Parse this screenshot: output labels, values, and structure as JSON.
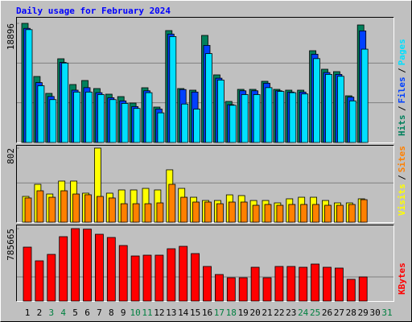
{
  "title": "Daily usage for February 2024",
  "chart_data": [
    {
      "type": "bar",
      "ylim": [
        0,
        18896
      ],
      "yticks": [
        18896
      ],
      "series": [
        {
          "name": "Hits",
          "color": "#00805c",
          "values": [
            18896,
            10470,
            7788,
            13279,
            9193,
            9831,
            8555,
            7661,
            7278,
            6256,
            8682,
            5618,
            17748,
            8555,
            8299,
            16981,
            10725,
            6512,
            8427,
            8427,
            9704,
            8427,
            8299,
            8299,
            14556,
            11619,
            11236,
            7405,
            18641,
            null,
            null
          ]
        },
        {
          "name": "Files",
          "color": "#0040ff",
          "values": [
            18100,
            9500,
            7300,
            12700,
            8300,
            8700,
            7900,
            7100,
            6600,
            5700,
            8200,
            5300,
            17200,
            8400,
            8000,
            15400,
            10200,
            6000,
            8200,
            8200,
            9400,
            8200,
            8000,
            8000,
            14000,
            11100,
            10800,
            7200,
            17700,
            null,
            null
          ]
        },
        {
          "name": "Pages",
          "color": "#00e0ff",
          "values": [
            17900,
            9000,
            6800,
            12600,
            8000,
            8000,
            7600,
            6800,
            6200,
            5400,
            7900,
            4700,
            16800,
            6100,
            5300,
            14100,
            9900,
            5900,
            7600,
            7600,
            8700,
            8100,
            7900,
            7700,
            13300,
            10800,
            10500,
            6600,
            14800,
            null,
            null
          ]
        }
      ]
    },
    {
      "type": "bar",
      "ylim": [
        0,
        802
      ],
      "yticks": [
        802
      ],
      "series": [
        {
          "name": "Visits",
          "color": "#ffff00",
          "values": [
            279,
            410,
            305,
            445,
            445,
            314,
            802,
            314,
            349,
            349,
            366,
            349,
            567,
            366,
            270,
            235,
            235,
            296,
            288,
            235,
            235,
            209,
            253,
            270,
            270,
            235,
            209,
            209,
            253,
            null,
            null
          ]
        },
        {
          "name": "Sites",
          "color": "#ff8000",
          "values": [
            262,
            340,
            270,
            340,
            305,
            297,
            279,
            262,
            200,
            200,
            200,
            209,
            410,
            270,
            218,
            218,
            200,
            218,
            218,
            183,
            192,
            183,
            192,
            192,
            192,
            183,
            183,
            192,
            244,
            null,
            null
          ]
        }
      ]
    },
    {
      "type": "bar",
      "ylim": [
        0,
        785665
      ],
      "yticks": [
        785665
      ],
      "categories": [
        "1",
        "2",
        "3",
        "4",
        "5",
        "6",
        "7",
        "8",
        "9",
        "10",
        "11",
        "12",
        "13",
        "14",
        "15",
        "16",
        "17",
        "18",
        "19",
        "20",
        "21",
        "22",
        "23",
        "24",
        "25",
        "26",
        "27",
        "28",
        "29",
        "30",
        "31"
      ],
      "category_colors": [
        "#000000",
        "#000000",
        "#008040",
        "#008040",
        "#000000",
        "#000000",
        "#000000",
        "#000000",
        "#000000",
        "#008040",
        "#008040",
        "#000000",
        "#000000",
        "#000000",
        "#000000",
        "#000000",
        "#008040",
        "#008040",
        "#000000",
        "#000000",
        "#000000",
        "#000000",
        "#000000",
        "#008040",
        "#008040",
        "#000000",
        "#000000",
        "#000000",
        "#000000",
        "#000000",
        "#008040"
      ],
      "series": [
        {
          "name": "KBytes",
          "color": "#ff0000",
          "values": [
            584910,
            436500,
            506340,
            698400,
            785665,
            780000,
            724590,
            689670,
            602370,
            488880,
            497610,
            497610,
            567450,
            593640,
            515070,
            375390,
            288090,
            253170,
            253170,
            366660,
            253170,
            375390,
            375390,
            366660,
            401580,
            366660,
            357930,
            235710,
            261900,
            null,
            null
          ]
        }
      ]
    }
  ]
}
